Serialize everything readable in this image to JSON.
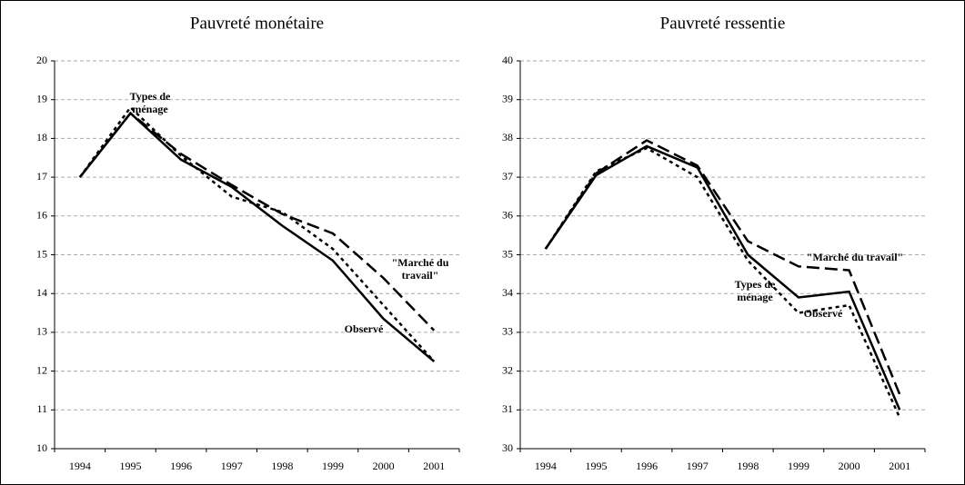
{
  "chart_data": [
    {
      "type": "line",
      "title": "Pauvreté monétaire",
      "categories": [
        "1994",
        "1995",
        "1996",
        "1997",
        "1998",
        "1999",
        "2000",
        "2001"
      ],
      "ylim": [
        10,
        20
      ],
      "yticks": [
        10,
        11,
        12,
        13,
        14,
        15,
        16,
        17,
        18,
        19,
        20
      ],
      "grid": true,
      "series": [
        {
          "name": "Observé",
          "color": "#000000",
          "style": "solid",
          "values": [
            17.0,
            18.65,
            17.45,
            16.75,
            15.75,
            14.85,
            13.35,
            12.25
          ]
        },
        {
          "name": "Types de ménage",
          "color": "#000000",
          "style": "dotted",
          "values": [
            17.0,
            18.8,
            17.55,
            16.5,
            16.1,
            15.15,
            13.7,
            12.25
          ]
        },
        {
          "name": "\"Marché du travail\"",
          "color": "#000000",
          "style": "dashed",
          "values": [
            17.0,
            18.65,
            17.6,
            16.8,
            16.05,
            15.55,
            14.4,
            13.05
          ]
        }
      ]
    },
    {
      "type": "line",
      "title": "Pauvreté ressentie",
      "categories": [
        "1994",
        "1995",
        "1996",
        "1997",
        "1998",
        "1999",
        "2000",
        "2001"
      ],
      "ylim": [
        30,
        40
      ],
      "yticks": [
        30,
        31,
        32,
        33,
        34,
        35,
        36,
        37,
        38,
        39,
        40
      ],
      "grid": true,
      "series": [
        {
          "name": "Observé",
          "color": "#000000",
          "style": "solid",
          "values": [
            35.15,
            37.05,
            37.8,
            37.25,
            35.0,
            33.9,
            34.05,
            31.0
          ]
        },
        {
          "name": "Types de ménage",
          "color": "#000000",
          "style": "dotted",
          "values": [
            35.15,
            37.15,
            37.75,
            37.0,
            34.85,
            33.5,
            33.7,
            30.8
          ]
        },
        {
          "name": "\"Marché du travail\"",
          "color": "#000000",
          "style": "dashed",
          "values": [
            35.15,
            37.1,
            37.95,
            37.3,
            35.35,
            34.7,
            34.6,
            31.4
          ]
        }
      ]
    }
  ]
}
